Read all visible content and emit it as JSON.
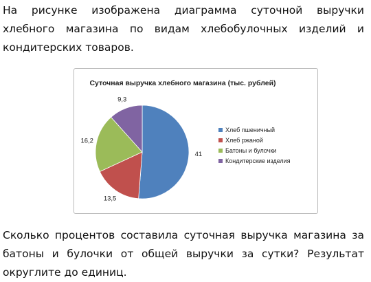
{
  "intro_text": "На рисунке изображена диаграмма суточной выручки хлебного магазина по видам хлебобулочных изделий и кондитерских товаров.",
  "question_text": "Сколько процентов составила суточная выручка магазина за батоны и булочки от общей выручки за сутки? Результат округлите до единиц.",
  "chart_data": {
    "type": "pie",
    "title": "Суточная выручка хлебного магазина (тыс. рублей)",
    "slices": [
      {
        "label": "Хлеб пшеничный",
        "value": 41,
        "value_label": "41",
        "color": "#4f81bd"
      },
      {
        "label": "Хлеб ржаной",
        "value": 13.5,
        "value_label": "13,5",
        "color": "#c0504d"
      },
      {
        "label": "Батоны и булочки",
        "value": 16.2,
        "value_label": "16,2",
        "color": "#9bbb59"
      },
      {
        "label": "Кондитерские изделия",
        "value": 9.3,
        "value_label": "9,3",
        "color": "#8064a2"
      }
    ],
    "legend_position": "right",
    "start_angle_direction": "clockwise from top"
  }
}
